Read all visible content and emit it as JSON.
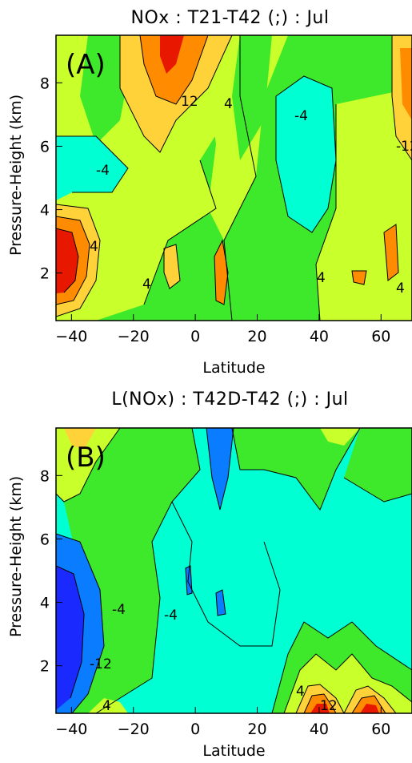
{
  "panels": [
    {
      "title": "NOx : T21-T42 (;) : Jul",
      "tag": "(A)",
      "ylabel": "Pressure-Height (km)",
      "xlabel": "Latitude",
      "contour_labels": [
        "12",
        "4",
        "-4",
        "-4",
        "-12",
        "4",
        "4",
        "4",
        "4"
      ]
    },
    {
      "title": "L(NOx) : T42D-T42 (;) : Jul",
      "tag": "(B)",
      "ylabel": "Pressure-Height (km)",
      "xlabel": "Latitude",
      "contour_labels": [
        "-4",
        "-4",
        "-12",
        "4",
        "4",
        "12"
      ]
    }
  ],
  "chart_data": [
    {
      "type": "heatmap",
      "title": "NOx : T21-T42 (;) : Jul",
      "xlabel": "Latitude",
      "ylabel": "Pressure-Height (km)",
      "xlim": [
        -45,
        70
      ],
      "ylim": [
        0.5,
        9.5
      ],
      "x_ticks": [
        -40,
        -20,
        0,
        20,
        40,
        60
      ],
      "y_ticks": [
        2,
        4,
        6,
        8
      ],
      "contour_interval": 4,
      "colormap": [
        "#1a2aff",
        "#0a7cff",
        "#00ffd2",
        "#3ee82a",
        "#c9ff2a",
        "#ffd23a",
        "#ff8c00",
        "#e81800"
      ],
      "features": [
        {
          "x": -42,
          "y": 2.0,
          "value": 20,
          "desc": "max"
        },
        {
          "x": -8,
          "y": 8.5,
          "value": 16
        },
        {
          "x": -38,
          "y": 5.0,
          "value": -4
        },
        {
          "x": 35,
          "y": 5.0,
          "value": -6
        },
        {
          "x": -10,
          "y": 1.8,
          "value": 10
        },
        {
          "x": 62,
          "y": 2.5,
          "value": 10
        },
        {
          "x": 68,
          "y": 7.5,
          "value": 12
        }
      ]
    },
    {
      "type": "heatmap",
      "title": "L(NOx) : T42D-T42 (;) : Jul",
      "xlabel": "Latitude",
      "ylabel": "Pressure-Height (km)",
      "xlim": [
        -45,
        70
      ],
      "ylim": [
        0.5,
        9.5
      ],
      "x_ticks": [
        -40,
        -20,
        0,
        20,
        40,
        60
      ],
      "y_ticks": [
        2,
        4,
        6,
        8
      ],
      "contour_interval": 4,
      "colormap": [
        "#1a2aff",
        "#0a7cff",
        "#00ffd2",
        "#3ee82a",
        "#c9ff2a",
        "#ffd23a",
        "#ff8c00",
        "#e81800"
      ],
      "features": [
        {
          "x": -43,
          "y": 3.0,
          "value": -16,
          "desc": "min"
        },
        {
          "x": 8,
          "y": 8.5,
          "value": -8
        },
        {
          "x": 38,
          "y": 0.8,
          "value": 14
        },
        {
          "x": 55,
          "y": 0.8,
          "value": 12
        },
        {
          "x": -30,
          "y": 9.0,
          "value": 6
        }
      ]
    }
  ]
}
